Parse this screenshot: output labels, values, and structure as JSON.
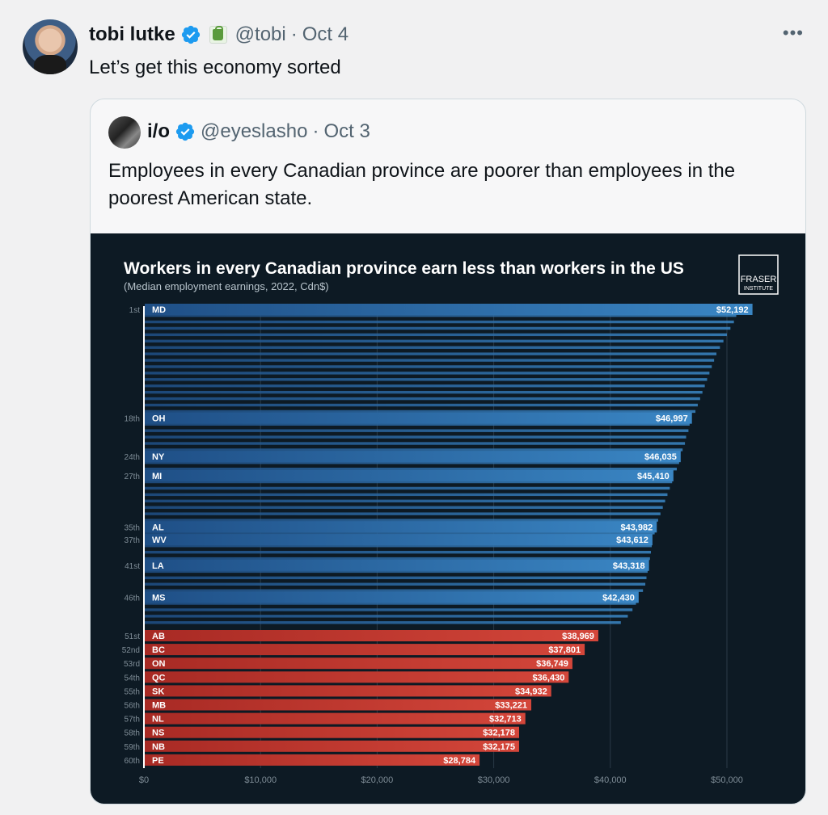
{
  "tweet": {
    "author_name": "tobi lutke",
    "handle": "@tobi",
    "separator": "·",
    "date": "Oct 4",
    "text": "Let’s get this economy sorted",
    "more_label": "•••"
  },
  "quoted": {
    "author_name": "i/o",
    "handle": "@eyeslasho",
    "separator": "·",
    "date": "Oct 3",
    "text": "Employees in every Canadian province are poorer than employees in the poorest American state."
  },
  "colors": {
    "verified": "#1d9bf0",
    "us_bar": "#2f6fae",
    "ca_bar": "#c0352c",
    "chart_bg": "#0d1a24"
  },
  "chart_data": {
    "type": "bar",
    "orientation": "horizontal",
    "title": "Workers in every Canadian province earn less than workers in the US",
    "subtitle": "(Median employment earnings, 2022, Cdn$)",
    "logo_text": [
      "FRASER",
      "INSTITUTE"
    ],
    "xlim": [
      0,
      52192
    ],
    "xticks": [
      0,
      10000,
      20000,
      30000,
      40000,
      50000
    ],
    "xtick_labels": [
      "$0",
      "$10,000",
      "$20,000",
      "$30,000",
      "$40,000",
      "$50,000"
    ],
    "grid": true,
    "us_series_values": [
      52192,
      50800,
      50600,
      50300,
      50000,
      49700,
      49400,
      49100,
      48900,
      48700,
      48500,
      48300,
      48100,
      47900,
      47700,
      47500,
      47300,
      46997,
      46800,
      46700,
      46500,
      46400,
      46200,
      46035,
      45900,
      45700,
      45410,
      45300,
      45100,
      44900,
      44700,
      44500,
      44300,
      44100,
      43982,
      43800,
      43612,
      43550,
      43480,
      43400,
      43318,
      43200,
      43100,
      43000,
      42800,
      42430,
      42200,
      41900,
      41500,
      40900
    ],
    "labeled_bars": [
      {
        "rank": "1st",
        "code": "MD",
        "value": 52192,
        "value_label": "$52,192",
        "group": "us",
        "index": 1
      },
      {
        "rank": "18th",
        "code": "OH",
        "value": 46997,
        "value_label": "$46,997",
        "group": "us",
        "index": 18
      },
      {
        "rank": "24th",
        "code": "NY",
        "value": 46035,
        "value_label": "$46,035",
        "group": "us",
        "index": 24
      },
      {
        "rank": "27th",
        "code": "MI",
        "value": 45410,
        "value_label": "$45,410",
        "group": "us",
        "index": 27
      },
      {
        "rank": "35th",
        "code": "AL",
        "value": 43982,
        "value_label": "$43,982",
        "group": "us",
        "index": 35
      },
      {
        "rank": "37th",
        "code": "WV",
        "value": 43612,
        "value_label": "$43,612",
        "group": "us",
        "index": 37
      },
      {
        "rank": "41st",
        "code": "LA",
        "value": 43318,
        "value_label": "$43,318",
        "group": "us",
        "index": 41
      },
      {
        "rank": "46th",
        "code": "MS",
        "value": 42430,
        "value_label": "$42,430",
        "group": "us",
        "index": 46
      }
    ],
    "canada": [
      {
        "rank": "51st",
        "code": "AB",
        "value": 38969,
        "value_label": "$38,969"
      },
      {
        "rank": "52nd",
        "code": "BC",
        "value": 37801,
        "value_label": "$37,801"
      },
      {
        "rank": "53rd",
        "code": "ON",
        "value": 36749,
        "value_label": "$36,749"
      },
      {
        "rank": "54th",
        "code": "QC",
        "value": 36430,
        "value_label": "$36,430"
      },
      {
        "rank": "55th",
        "code": "SK",
        "value": 34932,
        "value_label": "$34,932"
      },
      {
        "rank": "56th",
        "code": "MB",
        "value": 33221,
        "value_label": "$33,221"
      },
      {
        "rank": "57th",
        "code": "NL",
        "value": 32713,
        "value_label": "$32,713"
      },
      {
        "rank": "58th",
        "code": "NS",
        "value": 32178,
        "value_label": "$32,178"
      },
      {
        "rank": "59th",
        "code": "NB",
        "value": 32175,
        "value_label": "$32,175"
      },
      {
        "rank": "60th",
        "code": "PE",
        "value": 28784,
        "value_label": "$28,784"
      }
    ]
  }
}
